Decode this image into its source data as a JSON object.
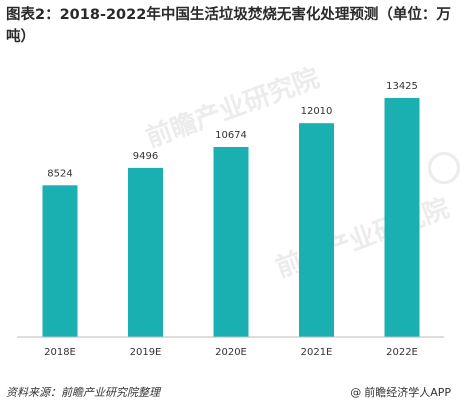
{
  "title": "图表2：2018-2022年中国生活垃圾焚烧无害化处理预测（单位：万吨）",
  "watermark": "前瞻产业研究院",
  "colors": {
    "bar": "#1aafb1",
    "axis": "#bbbbbb",
    "text": "#333333"
  },
  "footer": {
    "source": "资料来源：前瞻产业研究院整理",
    "credit": "前瞻经济学人APP",
    "credit_icon": "at-icon"
  },
  "chart_data": {
    "type": "bar",
    "title": "图表2：2018-2022年中国生活垃圾焚烧无害化处理预测（单位：万吨）",
    "categories": [
      "2018E",
      "2019E",
      "2020E",
      "2021E",
      "2022E"
    ],
    "values": [
      8524,
      9496,
      10674,
      12010,
      13425
    ],
    "xlabel": "",
    "ylabel": "",
    "grid": false,
    "legend": "none"
  }
}
